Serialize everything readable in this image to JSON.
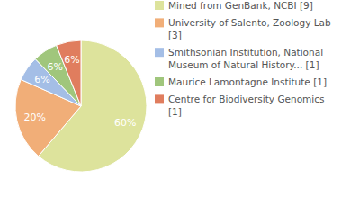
{
  "chart_data": {
    "type": "pie",
    "categories": [
      "Mined from GenBank, NCBI [9]",
      "University of Salento, Zoology Lab [3]",
      "Smithsonian Institution, National Museum of Natural History... [1]",
      "Maurice Lamontagne Institute [1]",
      "Centre for Biodiversity Genomics [1]"
    ],
    "values": [
      60,
      20,
      6,
      6,
      6
    ],
    "value_labels": [
      "60%",
      "20%",
      "6%",
      "6%",
      "6%"
    ],
    "data_labels": true,
    "legend": "right",
    "colors": [
      "#dde39c",
      "#f1ae78",
      "#a4bee6",
      "#a0c67c",
      "#e07d5e"
    ]
  }
}
